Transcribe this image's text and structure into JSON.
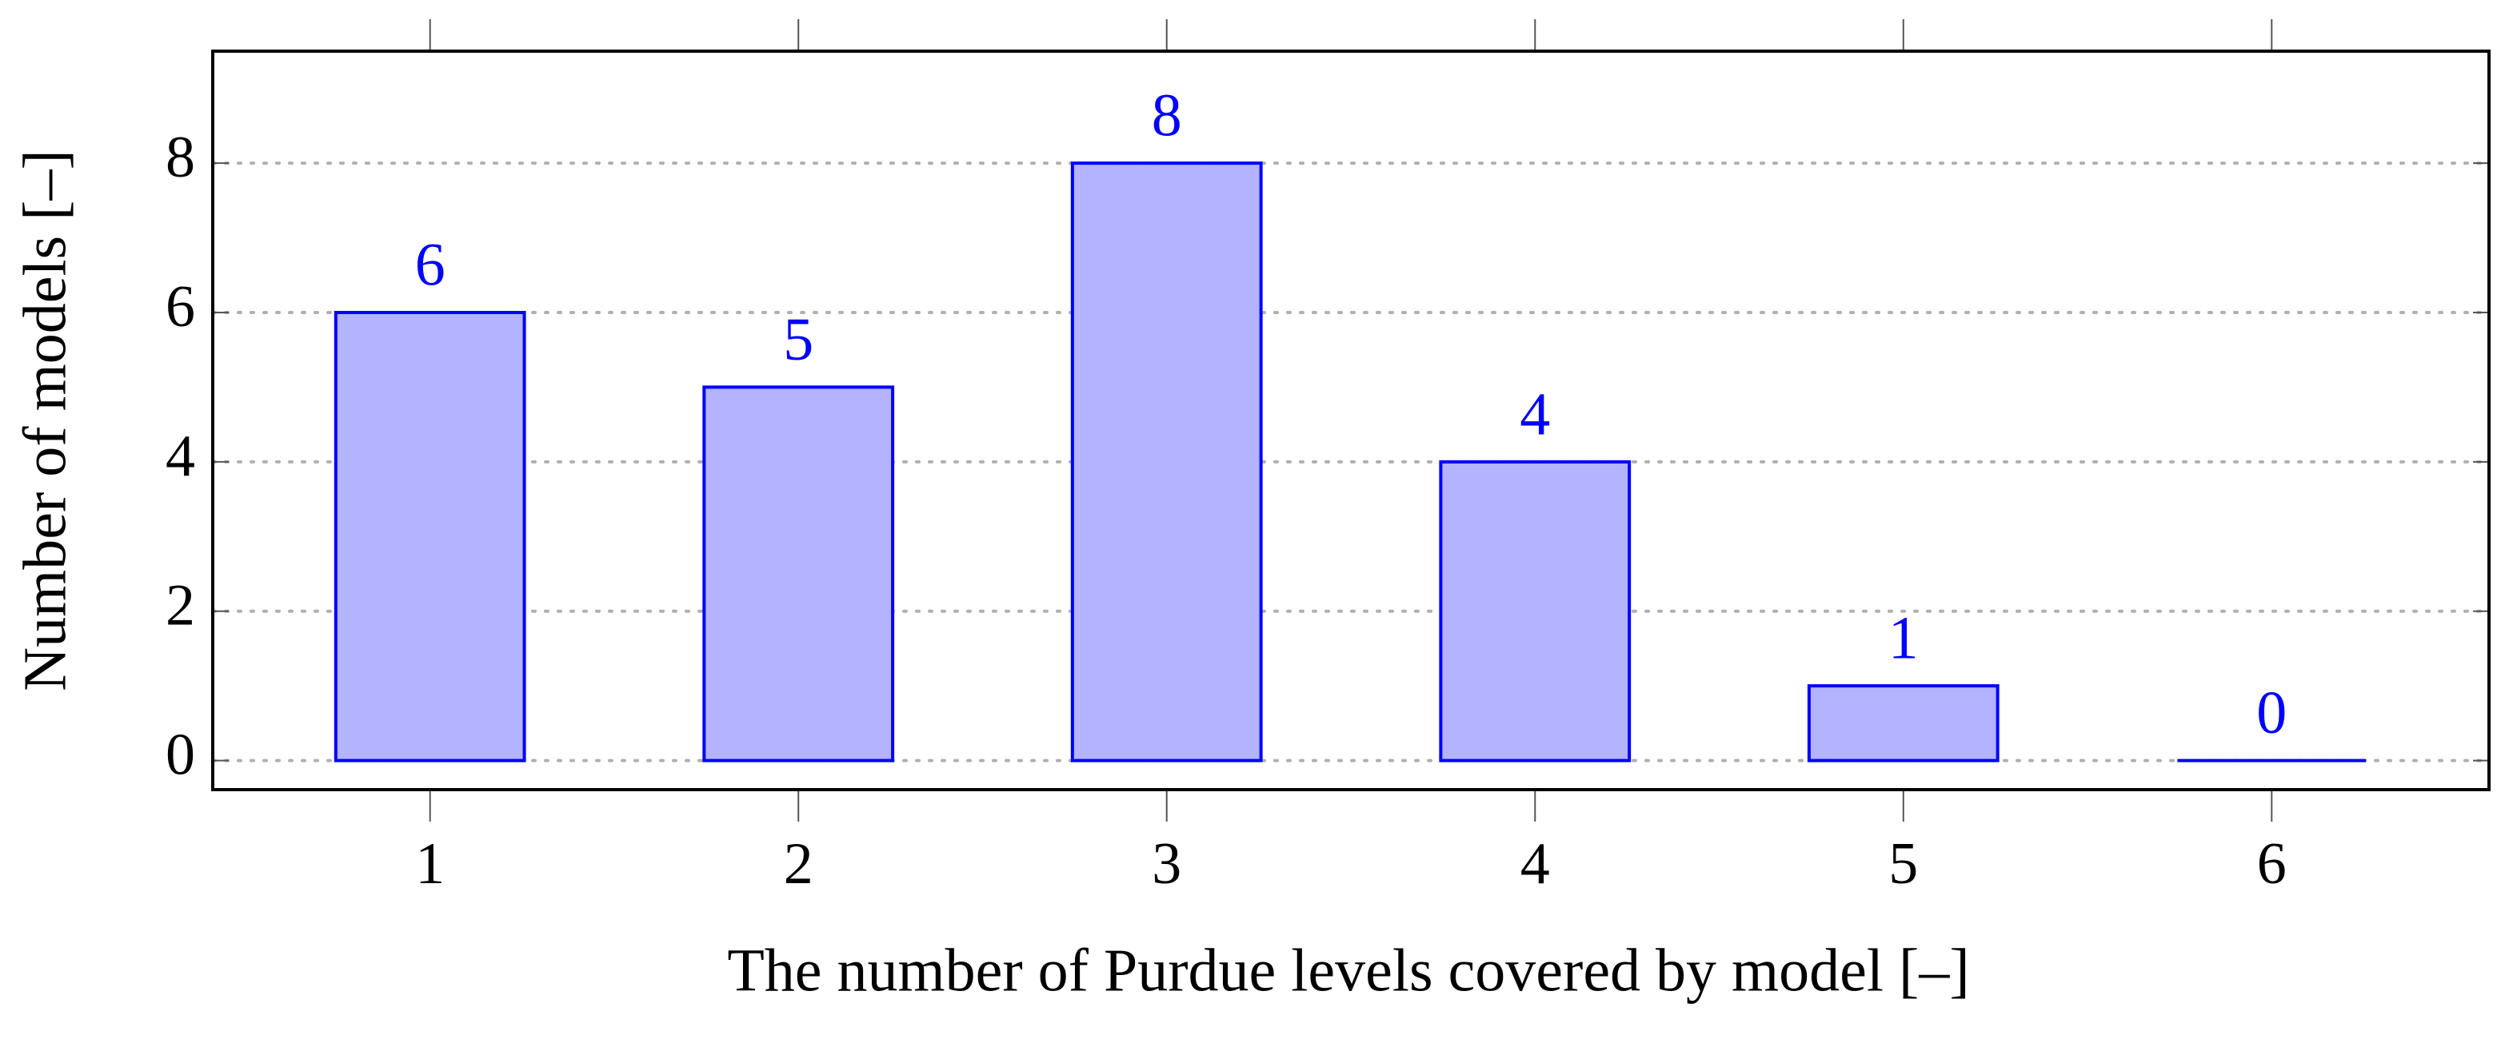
{
  "chart_data": {
    "type": "bar",
    "x_label": "The number of Purdue levels covered by model [–]",
    "y_label": "Number of models [–]",
    "x": [
      1,
      2,
      3,
      4,
      5,
      6
    ],
    "values": [
      6,
      5,
      8,
      4,
      1,
      0
    ],
    "color": "#b3b3ff",
    "edge_color": "#0000ff",
    "label_color": "#0000ff",
    "xlim": [
      0.41,
      6.59
    ],
    "xticks": [
      1,
      2,
      3,
      4,
      5,
      6
    ],
    "ylim": [
      -0.39,
      9.5
    ],
    "yticks": [
      0,
      2,
      4,
      6,
      8
    ],
    "grid": true
  }
}
